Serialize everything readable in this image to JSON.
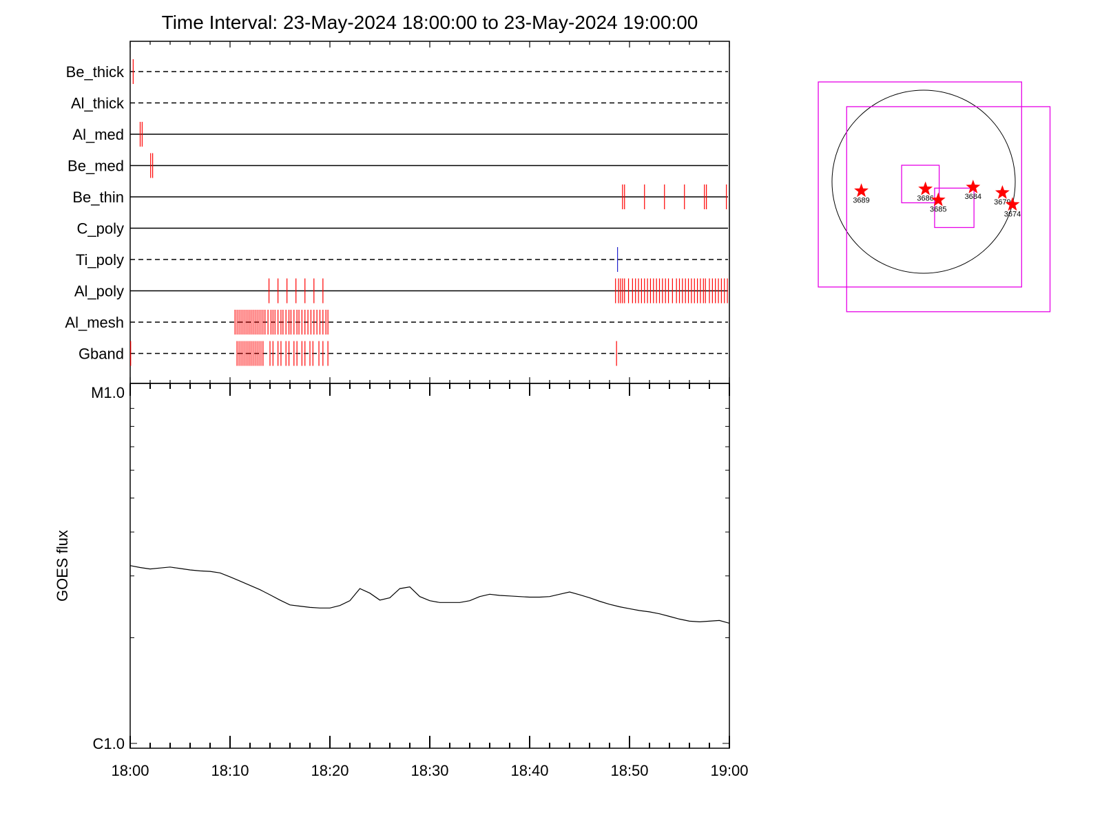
{
  "chart_data": [
    {
      "type": "timeline",
      "title": "Time Interval: 23-May-2024 18:00:00 to 23-May-2024 19:00:00",
      "x_range_minutes": [
        0,
        60
      ],
      "tracks": [
        {
          "name": "Be_thick",
          "style": "dashed",
          "events": [
            0.3
          ]
        },
        {
          "name": "Al_thick",
          "style": "dashed",
          "events": []
        },
        {
          "name": "Al_med",
          "style": "solid",
          "events": [
            1.0,
            1.2
          ]
        },
        {
          "name": "Be_med",
          "style": "solid",
          "events": [
            2.05,
            2.25
          ]
        },
        {
          "name": "Be_thin",
          "style": "solid",
          "events": [
            49.3,
            49.5,
            51.5,
            53.5,
            55.5,
            57.5,
            57.7,
            59.7
          ]
        },
        {
          "name": "C_poly",
          "style": "solid",
          "events": []
        },
        {
          "name": "Ti_poly",
          "style": "dashed",
          "events": [
            48.8
          ],
          "event_color": "#2222cc"
        },
        {
          "name": "Al_poly",
          "style": "solid",
          "events": [
            13.9,
            14.8,
            15.7,
            16.6,
            17.5,
            18.4,
            19.3,
            48.6,
            48.9,
            49.1,
            49.3,
            49.5,
            49.9,
            50.3,
            50.6,
            50.9,
            51.2,
            51.5,
            51.8,
            52.1,
            52.4,
            52.7,
            53.0,
            53.3,
            53.6,
            53.9,
            54.3,
            54.7,
            55.0,
            55.3,
            55.6,
            55.9,
            56.2,
            56.5,
            56.8,
            57.1,
            57.4,
            57.6,
            58.0,
            58.3,
            58.6,
            58.9,
            59.2,
            59.5,
            59.8
          ]
        },
        {
          "name": "Al_mesh",
          "style": "dashed",
          "events": [
            10.5,
            10.7,
            10.9,
            11.1,
            11.3,
            11.5,
            11.7,
            11.9,
            12.1,
            12.3,
            12.5,
            12.7,
            12.9,
            13.1,
            13.3,
            13.5,
            13.8,
            14.1,
            14.3,
            14.5,
            14.8,
            15.1,
            15.3,
            15.6,
            15.9,
            16.1,
            16.4,
            16.7,
            16.9,
            17.2,
            17.5,
            17.8,
            18.1,
            18.4,
            18.7,
            19.0,
            19.3,
            19.6,
            19.8
          ]
        },
        {
          "name": "Gband",
          "style": "dashed",
          "events": [
            0.05,
            10.7,
            10.9,
            11.1,
            11.3,
            11.5,
            11.7,
            11.9,
            12.1,
            12.3,
            12.5,
            12.7,
            12.9,
            13.1,
            13.3,
            14.0,
            14.3,
            14.8,
            15.1,
            15.6,
            15.9,
            16.4,
            16.7,
            17.2,
            17.5,
            18.0,
            18.3,
            18.9,
            19.3,
            19.8,
            48.7
          ]
        }
      ]
    },
    {
      "type": "line",
      "ylabel": "GOES flux",
      "y_scale": "log",
      "y_range": [
        1e-06,
        1e-05
      ],
      "y_tick_labels": [
        {
          "value": 1e-05,
          "label": "M1.0"
        },
        {
          "value": 1e-06,
          "label": "C1.0"
        }
      ],
      "x_range_minutes": [
        0,
        60
      ],
      "x_tick_labels": [
        {
          "minute": 0,
          "label": "18:00"
        },
        {
          "minute": 10,
          "label": "18:10"
        },
        {
          "minute": 20,
          "label": "18:20"
        },
        {
          "minute": 30,
          "label": "18:30"
        },
        {
          "minute": 40,
          "label": "18:40"
        },
        {
          "minute": 50,
          "label": "18:50"
        },
        {
          "minute": 60,
          "label": "19:00"
        }
      ],
      "series": [
        {
          "color": "#000000",
          "x_minutes": [
            0,
            1,
            2,
            3,
            4,
            5,
            6,
            7,
            8,
            9,
            10,
            11,
            12,
            13,
            14,
            15,
            16,
            17,
            18,
            19,
            20,
            21,
            22,
            23,
            24,
            25,
            26,
            27,
            28,
            29,
            30,
            31,
            32,
            33,
            34,
            35,
            36,
            37,
            38,
            39,
            40,
            41,
            42,
            43,
            44,
            45,
            46,
            47,
            48,
            49,
            50,
            51,
            52,
            53,
            54,
            55,
            56,
            57,
            58,
            59,
            60
          ],
          "values": [
            3.21e-06,
            3.17e-06,
            3.14e-06,
            3.16e-06,
            3.18e-06,
            3.15e-06,
            3.12e-06,
            3.1e-06,
            3.09e-06,
            3.06e-06,
            2.98e-06,
            2.9e-06,
            2.82e-06,
            2.74e-06,
            2.65e-06,
            2.56e-06,
            2.48e-06,
            2.46e-06,
            2.44e-06,
            2.43e-06,
            2.43e-06,
            2.47e-06,
            2.55e-06,
            2.76e-06,
            2.68e-06,
            2.56e-06,
            2.6e-06,
            2.76e-06,
            2.79e-06,
            2.62e-06,
            2.55e-06,
            2.52e-06,
            2.52e-06,
            2.52e-06,
            2.55e-06,
            2.62e-06,
            2.66e-06,
            2.64e-06,
            2.63e-06,
            2.62e-06,
            2.61e-06,
            2.61e-06,
            2.62e-06,
            2.66e-06,
            2.7e-06,
            2.65e-06,
            2.6e-06,
            2.54e-06,
            2.49e-06,
            2.45e-06,
            2.42e-06,
            2.39e-06,
            2.37e-06,
            2.34e-06,
            2.3e-06,
            2.26e-06,
            2.23e-06,
            2.22e-06,
            2.23e-06,
            2.24e-06,
            2.2e-06
          ]
        }
      ]
    },
    {
      "type": "scatter",
      "points": [
        {
          "label": "3689",
          "x": -0.68,
          "y": -0.1
        },
        {
          "label": "3686",
          "x": 0.02,
          "y": -0.08
        },
        {
          "label": "3685",
          "x": 0.16,
          "y": -0.2
        },
        {
          "label": "3684",
          "x": 0.54,
          "y": -0.06
        },
        {
          "label": "3679",
          "x": 0.86,
          "y": -0.12
        },
        {
          "label": "3674",
          "x": 0.97,
          "y": -0.25
        }
      ],
      "disk_radius": 1.0,
      "boxes": [
        {
          "x": [
            -1.15,
            1.07
          ],
          "y": [
            -1.15,
            1.09
          ],
          "color": "#e600e6"
        },
        {
          "x": [
            -0.84,
            1.38
          ],
          "y": [
            -1.42,
            0.82
          ],
          "color": "#e600e6"
        },
        {
          "x": [
            -0.24,
            0.17
          ],
          "y": [
            -0.23,
            0.18
          ],
          "color": "#e600e6"
        },
        {
          "x": [
            0.12,
            0.55
          ],
          "y": [
            -0.5,
            -0.07
          ],
          "color": "#e600e6"
        }
      ],
      "star_color": "#ff0000",
      "box_color": "#e600e6"
    }
  ]
}
